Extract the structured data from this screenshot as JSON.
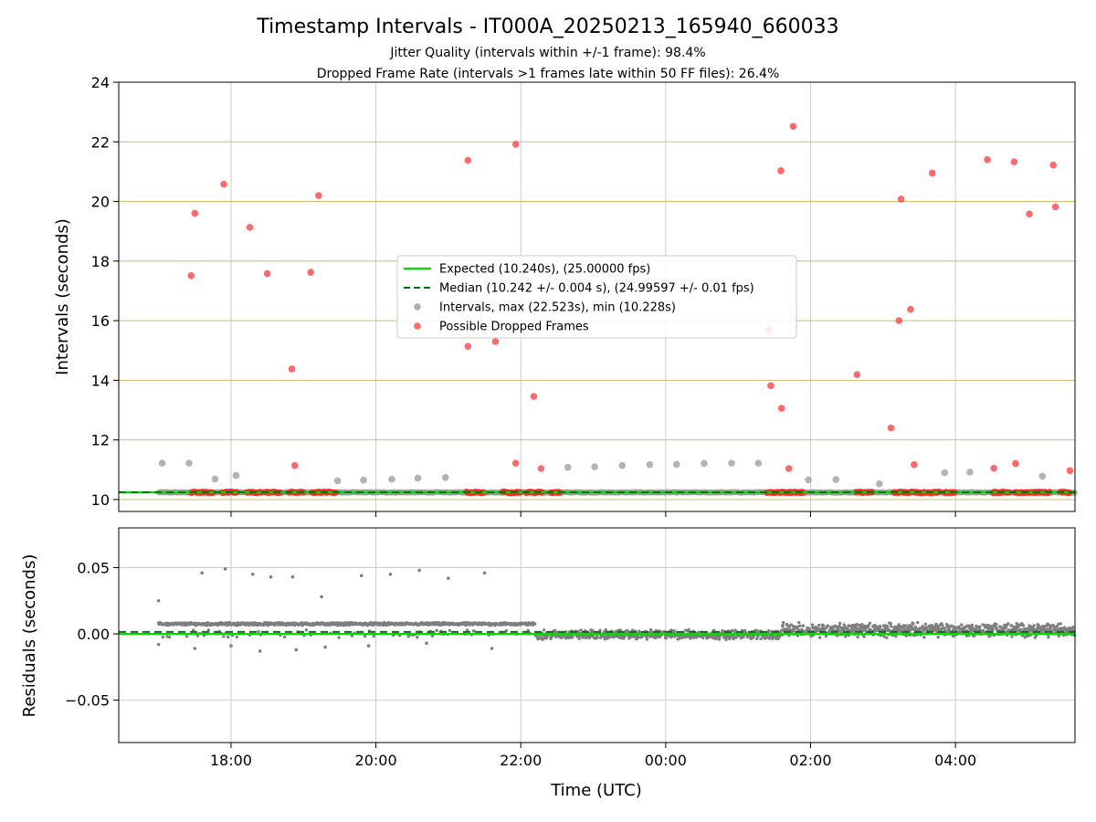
{
  "chart_data": [
    {
      "type": "scatter",
      "title": "Timestamp Intervals - IT000A_20250213_165940_660033",
      "subtitle_1": "Jitter Quality (intervals within +/-1 frame): 98.4%",
      "subtitle_2": "Dropped Frame Rate (intervals >1 frames late within 50 FF files): 26.4%",
      "xlabel": "",
      "ylabel": "Intervals (seconds)",
      "ylim": [
        9.6,
        24
      ],
      "xlim_hours": [
        16.45,
        29.65
      ],
      "yticks": [
        10,
        12,
        14,
        16,
        18,
        20,
        22,
        24
      ],
      "ytick_labels": [
        "10",
        "12",
        "14",
        "16",
        "18",
        "20",
        "22",
        "24"
      ],
      "x_tick_positions_hours": [
        18,
        20,
        22,
        24,
        26,
        28
      ],
      "grid": true,
      "reference_lines": {
        "yellow_lines_y": [
          10,
          12,
          14,
          16,
          18,
          20,
          22
        ],
        "yellow_color": "#d4b96a",
        "expected_y": 10.24,
        "median_y": 10.242,
        "band_start_hour": 17.0
      },
      "legend": {
        "placement": "center",
        "entries": [
          {
            "label": "Expected (10.240s), (25.00000 fps)",
            "kind": "line",
            "color": "#00dd00"
          },
          {
            "label": "Median (10.242 +/- 0.004 s), (24.99597 +/- 0.01 fps)",
            "kind": "dashed",
            "color": "#007700"
          },
          {
            "label": "Intervals, max (22.523s), min (10.228s)",
            "kind": "marker",
            "color": "#999999"
          },
          {
            "label": "Possible Dropped Frames",
            "kind": "marker",
            "color": "#ff4444"
          }
        ]
      },
      "series": [
        {
          "name": "Intervals, max (22.523s), min (10.228s)",
          "color": "#999999",
          "points": [
            [
              17.05,
              11.22
            ],
            [
              17.42,
              11.22
            ],
            [
              17.78,
              10.69
            ],
            [
              18.07,
              10.81
            ],
            [
              19.47,
              10.63
            ],
            [
              19.83,
              10.65
            ],
            [
              20.22,
              10.68
            ],
            [
              20.58,
              10.72
            ],
            [
              20.96,
              10.74
            ],
            [
              22.65,
              11.08
            ],
            [
              23.02,
              11.1
            ],
            [
              23.4,
              11.14
            ],
            [
              23.78,
              11.17
            ],
            [
              24.15,
              11.18
            ],
            [
              24.53,
              11.21
            ],
            [
              24.91,
              11.22
            ],
            [
              25.28,
              11.22
            ],
            [
              25.97,
              10.66
            ],
            [
              26.35,
              10.67
            ],
            [
              26.95,
              10.53
            ],
            [
              27.85,
              10.9
            ],
            [
              28.2,
              10.92
            ],
            [
              29.2,
              10.78
            ]
          ]
        },
        {
          "name": "Possible Dropped Frames",
          "color": "#ff4444",
          "points": [
            [
              17.45,
              17.51
            ],
            [
              17.5,
              19.6
            ],
            [
              17.9,
              20.58
            ],
            [
              18.26,
              19.13
            ],
            [
              18.5,
              17.58
            ],
            [
              18.84,
              14.38
            ],
            [
              18.88,
              11.14
            ],
            [
              19.1,
              17.62
            ],
            [
              19.21,
              20.2
            ],
            [
              21.27,
              21.38
            ],
            [
              21.27,
              15.14
            ],
            [
              21.65,
              15.3
            ],
            [
              21.93,
              21.92
            ],
            [
              21.93,
              11.22
            ],
            [
              22.18,
              13.46
            ],
            [
              22.28,
              11.04
            ],
            [
              25.43,
              15.68
            ],
            [
              25.45,
              13.82
            ],
            [
              25.59,
              21.03
            ],
            [
              25.6,
              13.06
            ],
            [
              25.7,
              11.04
            ],
            [
              25.76,
              22.52
            ],
            [
              26.64,
              14.19
            ],
            [
              27.11,
              12.4
            ],
            [
              27.22,
              16.0
            ],
            [
              27.25,
              20.08
            ],
            [
              27.38,
              16.38
            ],
            [
              27.43,
              11.17
            ],
            [
              27.68,
              20.95
            ],
            [
              28.44,
              21.4
            ],
            [
              28.53,
              11.05
            ],
            [
              28.81,
              21.33
            ],
            [
              28.83,
              11.21
            ],
            [
              29.02,
              19.58
            ],
            [
              29.35,
              21.22
            ],
            [
              29.38,
              19.82
            ],
            [
              29.58,
              10.97
            ]
          ]
        }
      ]
    },
    {
      "type": "scatter",
      "xlabel": "Time (UTC)",
      "ylabel": "Residuals (seconds)",
      "ylim": [
        -0.082,
        0.08
      ],
      "yticks": [
        0.05,
        0.0,
        -0.05
      ],
      "ytick_labels": [
        "0.05",
        "0.00",
        "−0.05"
      ],
      "xlim_hours": [
        16.45,
        29.65
      ],
      "x_tick_positions_hours": [
        18,
        20,
        22,
        24,
        26,
        28
      ],
      "xtick_labels": [
        "18:00",
        "20:00",
        "22:00",
        "00:00",
        "02:00",
        "04:00"
      ],
      "grid": true,
      "reference_lines": {
        "expected_y": 0.0,
        "median_y": 0.0015,
        "band_start_hour": 17.0
      },
      "series": [
        {
          "name": "",
          "color": "#7f7f7f",
          "outliers": [
            [
              17.0,
              0.025
            ],
            [
              17.0,
              -0.008
            ],
            [
              17.6,
              0.046
            ],
            [
              17.92,
              0.049
            ],
            [
              18.3,
              0.045
            ],
            [
              18.55,
              0.043
            ],
            [
              18.85,
              0.043
            ],
            [
              19.25,
              0.028
            ],
            [
              19.8,
              0.044
            ],
            [
              20.2,
              0.045
            ],
            [
              20.6,
              0.048
            ],
            [
              21.0,
              0.042
            ],
            [
              21.5,
              0.046
            ],
            [
              17.5,
              -0.011
            ],
            [
              18.0,
              -0.009
            ],
            [
              18.4,
              -0.013
            ],
            [
              18.9,
              -0.012
            ],
            [
              19.3,
              -0.01
            ],
            [
              19.9,
              -0.009
            ],
            [
              20.7,
              -0.007
            ],
            [
              21.6,
              -0.011
            ]
          ],
          "segments": [
            {
              "from_hour": 17.0,
              "to_hour": 22.2,
              "center": 0.0075,
              "spread": 0.0012
            },
            {
              "from_hour": 22.2,
              "to_hour": 25.6,
              "center": -0.0005,
              "spread": 0.004
            },
            {
              "from_hour": 25.6,
              "to_hour": 29.65,
              "center": 0.003,
              "spread": 0.006
            }
          ]
        }
      ]
    }
  ]
}
